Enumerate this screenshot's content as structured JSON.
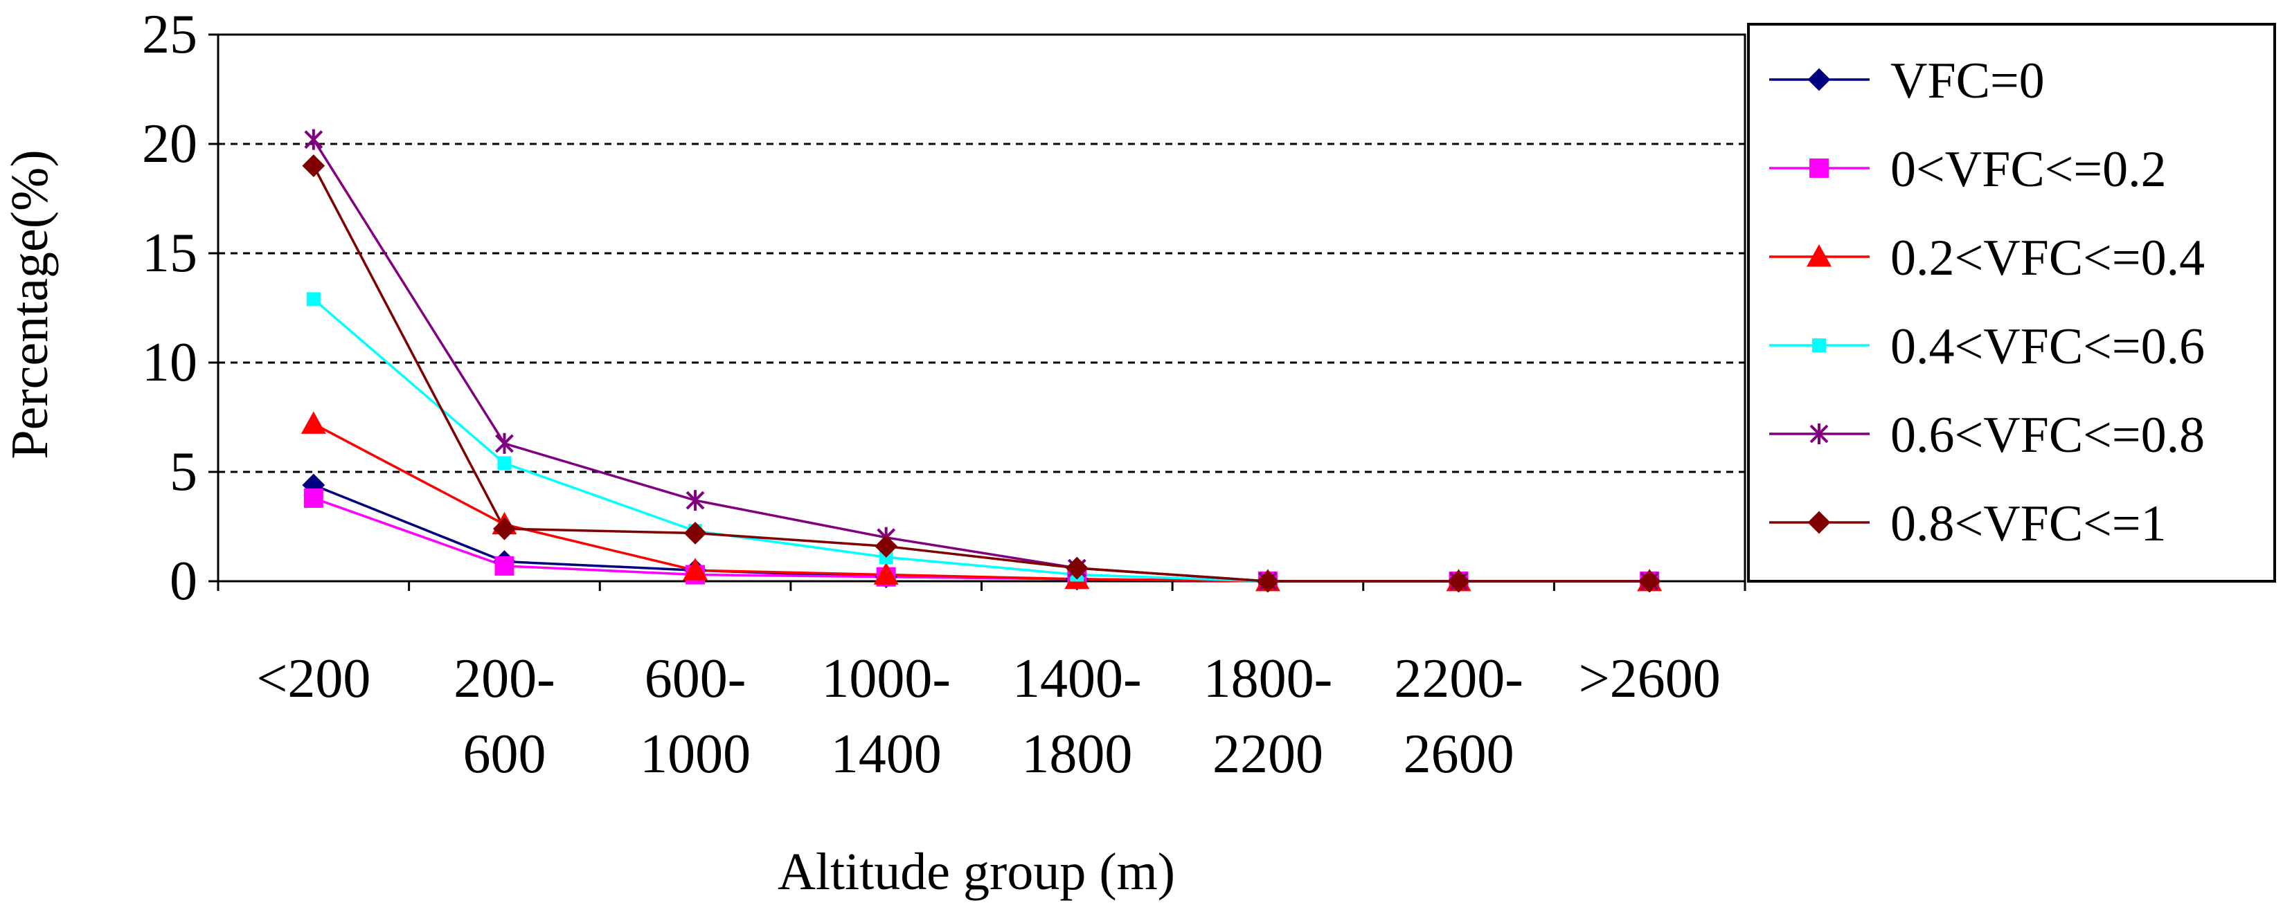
{
  "chart_data": {
    "type": "line",
    "title": "",
    "xlabel": "Altitude group (m)",
    "ylabel": "Percentage(%)",
    "ylim": [
      0,
      25
    ],
    "yticks": [
      0,
      5,
      10,
      15,
      20,
      25
    ],
    "grid": "dashed horizontal at 5, 10, 15, 20",
    "legend_position": "right",
    "categories": [
      [
        "<200"
      ],
      [
        "200-",
        "600"
      ],
      [
        "600-",
        "1000"
      ],
      [
        "1000-",
        "1400"
      ],
      [
        "1400-",
        "1800"
      ],
      [
        "1800-",
        "2200"
      ],
      [
        "2200-",
        "2600"
      ],
      [
        ">2600"
      ]
    ],
    "series": [
      {
        "name": "VFC=0",
        "color": "#000080",
        "marker": "diamond",
        "values": [
          4.4,
          0.9,
          0.5,
          0.2,
          0.1,
          0.0,
          0.0,
          0.0
        ]
      },
      {
        "name": "0<VFC<=0.2",
        "color": "#ff00ff",
        "marker": "square",
        "values": [
          3.8,
          0.7,
          0.3,
          0.2,
          0.1,
          0.0,
          0.0,
          0.0
        ]
      },
      {
        "name": "0.2<VFC<=0.4",
        "color": "#ff0000",
        "marker": "triangle",
        "values": [
          7.2,
          2.6,
          0.5,
          0.3,
          0.1,
          0.0,
          0.0,
          0.0
        ]
      },
      {
        "name": "0.4<VFC<=0.6",
        "color": "#00ffff",
        "marker": "small-square",
        "values": [
          12.9,
          5.4,
          2.3,
          1.1,
          0.3,
          0.0,
          0.0,
          0.0
        ]
      },
      {
        "name": "0.6<VFC<=0.8",
        "color": "#800080",
        "marker": "star",
        "values": [
          20.2,
          6.3,
          3.7,
          2.0,
          0.6,
          0.0,
          0.0,
          0.0
        ]
      },
      {
        "name": "0.8<VFC<=1",
        "color": "#800000",
        "marker": "diamond",
        "values": [
          19.0,
          2.4,
          2.2,
          1.6,
          0.6,
          0.0,
          0.0,
          0.0
        ]
      }
    ]
  }
}
